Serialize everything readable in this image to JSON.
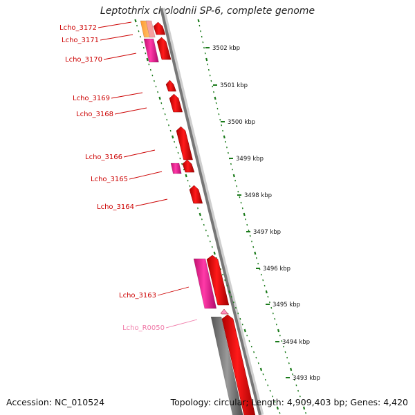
{
  "title": "Leptothrix cholodnii SP-6, complete genome",
  "footer": {
    "accession": "Accession: NC_010524",
    "topology": "Topology: circular; Length: 4,909,403 bp; Genes: 4,420"
  },
  "colors": {
    "forward_gene": "#ee0000",
    "reverse_gene": "#ff1493",
    "rna_gene": "#ff8fc0",
    "orange_gene": "#ffa040",
    "backbone": "#888888",
    "scale_ticks": "#1a7a1a",
    "label_cds": "#cc0000",
    "label_rna": "#f07aa8"
  },
  "genes": [
    {
      "label": "Lcho_3172",
      "type": "cds"
    },
    {
      "label": "Lcho_3171",
      "type": "cds"
    },
    {
      "label": "Lcho_3170",
      "type": "cds"
    },
    {
      "label": "Lcho_3169",
      "type": "cds"
    },
    {
      "label": "Lcho_3168",
      "type": "cds"
    },
    {
      "label": "Lcho_3166",
      "type": "cds"
    },
    {
      "label": "Lcho_3165",
      "type": "cds"
    },
    {
      "label": "Lcho_3164",
      "type": "cds"
    },
    {
      "label": "Lcho_3163",
      "type": "cds"
    },
    {
      "label": "Lcho_R0050",
      "type": "rna"
    }
  ],
  "scale_labels": [
    "3502 kbp",
    "3501 kbp",
    "3500 kbp",
    "3499 kbp",
    "3498 kbp",
    "3497 kbp",
    "3496 kbp",
    "3495 kbp",
    "3494 kbp",
    "3493 kbp"
  ]
}
